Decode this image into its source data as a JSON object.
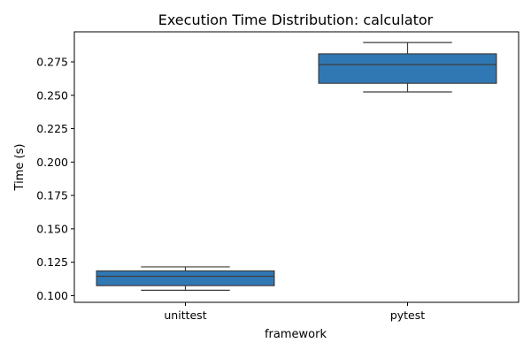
{
  "chart_data": {
    "type": "box",
    "title": "Execution Time Distribution: calculator",
    "xlabel": "framework",
    "ylabel": "Time (s)",
    "categories": [
      "unittest",
      "pytest"
    ],
    "ylim": [
      0.095,
      0.2975
    ],
    "yticks": [
      0.1,
      0.125,
      0.15,
      0.175,
      0.2,
      0.225,
      0.25,
      0.275
    ],
    "ytick_labels": [
      "0.100",
      "0.125",
      "0.150",
      "0.175",
      "0.200",
      "0.225",
      "0.250",
      "0.275"
    ],
    "boxes": [
      {
        "category": "unittest",
        "whisker_low": 0.104,
        "q1": 0.1075,
        "median": 0.1145,
        "q3": 0.1185,
        "whisker_high": 0.1215
      },
      {
        "category": "pytest",
        "whisker_low": 0.2525,
        "q1": 0.259,
        "median": 0.273,
        "q3": 0.281,
        "whisker_high": 0.2895
      }
    ],
    "colors": {
      "box_fill": "#2f78b4",
      "line": "#3d3d3d",
      "axis": "#000000"
    },
    "grid": false,
    "legend": "none"
  }
}
